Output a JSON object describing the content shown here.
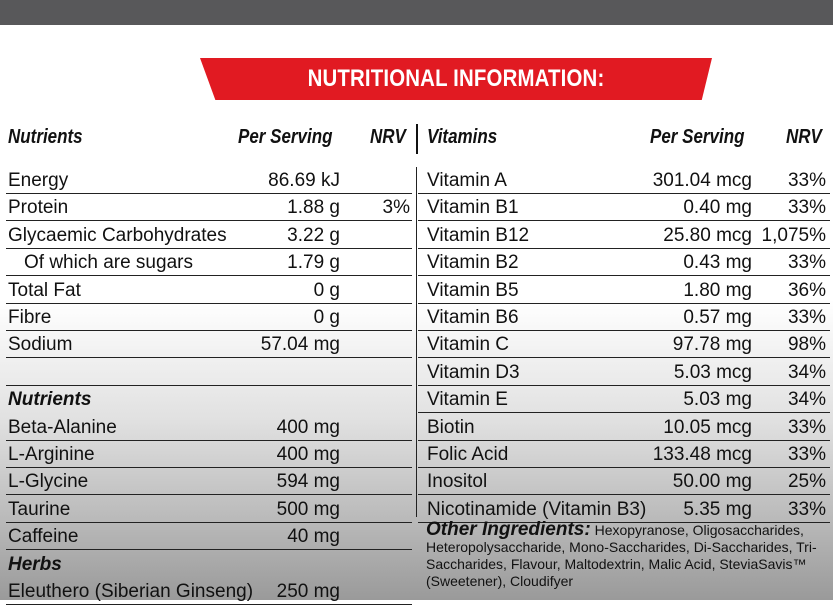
{
  "title": "NUTRITIONAL INFORMATION:",
  "left_headers": {
    "name": "Nutrients",
    "per_serving": "Per Serving",
    "nrv": "NRV"
  },
  "right_headers": {
    "name": "Vitamins",
    "per_serving": "Per Serving",
    "nrv": "NRV"
  },
  "nutrients": [
    {
      "name": "Energy",
      "value": "86.69 kJ",
      "nrv": ""
    },
    {
      "name": "Protein",
      "value": "1.88 g",
      "nrv": "3%"
    },
    {
      "name": "Glycaemic Carbohydrates",
      "value": "3.22 g",
      "nrv": ""
    },
    {
      "name": "Of which are sugars",
      "value": "1.79 g",
      "nrv": ""
    },
    {
      "name": "Total Fat",
      "value": "0 g",
      "nrv": ""
    },
    {
      "name": "Fibre",
      "value": "0 g",
      "nrv": ""
    },
    {
      "name": "Sodium",
      "value": "57.04 mg",
      "nrv": ""
    },
    {
      "name": "",
      "value": "",
      "nrv": ""
    }
  ],
  "nutrients2_header": "Nutrients",
  "nutrients2": [
    {
      "name": "Beta-Alanine",
      "value": "400 mg"
    },
    {
      "name": "L-Arginine",
      "value": "400 mg"
    },
    {
      "name": "L-Glycine",
      "value": "594 mg"
    },
    {
      "name": "Taurine",
      "value": "500 mg"
    },
    {
      "name": "Caffeine",
      "value": "40 mg"
    }
  ],
  "herbs_header": "Herbs",
  "herbs": [
    {
      "name": "Eleuthero (Siberian Ginseng)",
      "value": "250 mg"
    }
  ],
  "vitamins": [
    {
      "name": "Vitamin A",
      "value": "301.04 mcg",
      "nrv": "33%"
    },
    {
      "name": "Vitamin B1",
      "value": "0.40 mg",
      "nrv": "33%"
    },
    {
      "name": "Vitamin B12",
      "value": "25.80 mcg",
      "nrv": "1,075%"
    },
    {
      "name": "Vitamin B2",
      "value": "0.43 mg",
      "nrv": "33%"
    },
    {
      "name": "Vitamin B5",
      "value": "1.80 mg",
      "nrv": "36%"
    },
    {
      "name": "Vitamin B6",
      "value": "0.57 mg",
      "nrv": "33%"
    },
    {
      "name": "Vitamin C",
      "value": "97.78 mg",
      "nrv": "98%"
    },
    {
      "name": "Vitamin D3",
      "value": "5.03 mcg",
      "nrv": "34%"
    },
    {
      "name": "Vitamin E",
      "value": "5.03 mg",
      "nrv": "34%"
    },
    {
      "name": "Biotin",
      "value": "10.05 mcg",
      "nrv": "33%"
    },
    {
      "name": "Folic Acid",
      "value": "133.48 mcg",
      "nrv": "33%"
    },
    {
      "name": "Inositol",
      "value": "50.00 mg",
      "nrv": "25%"
    },
    {
      "name": "Nicotinamide (Vitamin B3)",
      "value": "5.35 mg",
      "nrv": "33%"
    }
  ],
  "other_ingredients": {
    "label": "Other Ingredients:",
    "text": " Hexopyranose, Oligosaccharides, Heteropolysaccharide, Mono-Saccharides, Di-Saccharides, Tri-Saccharides, Flavour, Maltodextrin, Malic Acid, SteviaSavis™ (Sweetener), Cloudifyer"
  },
  "colors": {
    "banner": "#e11a22",
    "topbar": "#58585a"
  }
}
